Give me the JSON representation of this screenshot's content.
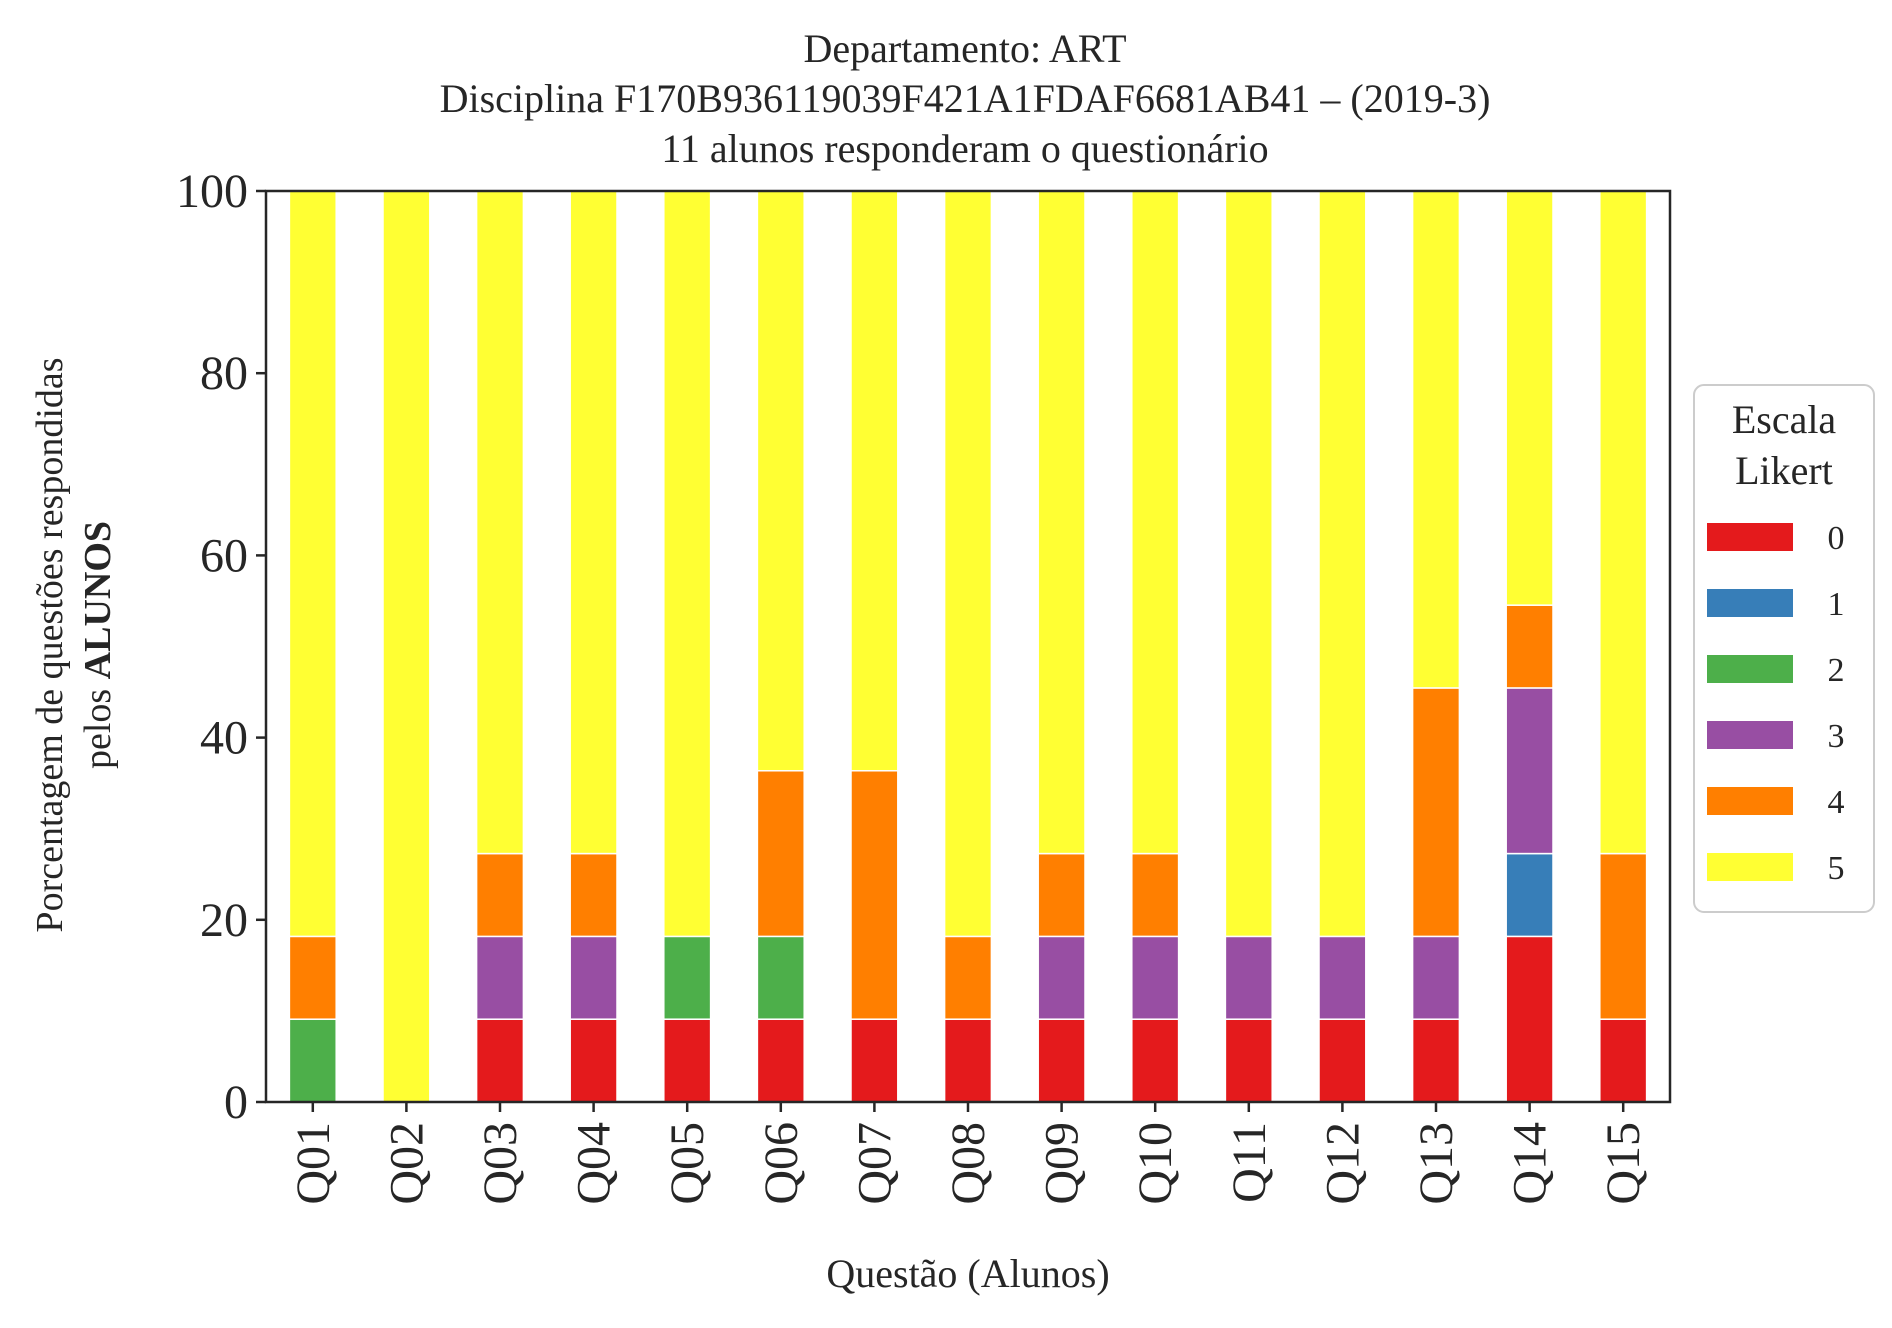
{
  "chart_data": {
    "type": "bar",
    "stacked": true,
    "title_lines": [
      "Departamento: ART",
      "Disciplina F170B936119039F421A1FDAF6681AB41 – (2019-3)",
      "11 alunos responderam o questionário"
    ],
    "xlabel": "Questão (Alunos)",
    "ylabel_line1": "Porcentagem de questões respondidas",
    "ylabel_line2_prefix": "pelos ",
    "ylabel_line2_bold": "ALUNOS",
    "ylim": [
      0,
      100
    ],
    "yticks": [
      "0",
      "20",
      "40",
      "60",
      "80",
      "100"
    ],
    "grid": false,
    "legend": {
      "title_lines": [
        "Escala",
        "Likert"
      ],
      "placement": "right-center"
    },
    "categories": [
      "Q01",
      "Q02",
      "Q03",
      "Q04",
      "Q05",
      "Q06",
      "Q07",
      "Q08",
      "Q09",
      "Q10",
      "Q11",
      "Q12",
      "Q13",
      "Q14",
      "Q15"
    ],
    "series": [
      {
        "name": "0",
        "color": "#e41a1c",
        "values": [
          0,
          0,
          9.09,
          9.09,
          9.09,
          9.09,
          9.09,
          9.09,
          9.09,
          9.09,
          9.09,
          9.09,
          9.09,
          18.18,
          9.09
        ]
      },
      {
        "name": "1",
        "color": "#377eb8",
        "values": [
          0,
          0,
          0,
          0,
          0,
          0,
          0,
          0,
          0,
          0,
          0,
          0,
          0,
          9.09,
          0
        ]
      },
      {
        "name": "2",
        "color": "#4daf4a",
        "values": [
          9.09,
          0,
          0,
          0,
          9.09,
          9.09,
          0,
          0,
          0,
          0,
          0,
          0,
          0,
          0,
          0
        ]
      },
      {
        "name": "3",
        "color": "#984ea3",
        "values": [
          0,
          0,
          9.09,
          9.09,
          0,
          0,
          0,
          0,
          9.09,
          9.09,
          9.09,
          9.09,
          9.09,
          18.18,
          0
        ]
      },
      {
        "name": "4",
        "color": "#ff7f00",
        "values": [
          9.09,
          0,
          9.09,
          9.09,
          0,
          18.18,
          27.27,
          9.09,
          9.09,
          9.09,
          0,
          0,
          27.27,
          9.09,
          18.18
        ]
      },
      {
        "name": "5",
        "color": "#ffff33",
        "values": [
          81.82,
          100,
          72.73,
          72.73,
          81.82,
          63.64,
          63.64,
          81.82,
          72.73,
          72.73,
          81.82,
          81.82,
          54.55,
          45.45,
          72.73
        ]
      }
    ]
  }
}
